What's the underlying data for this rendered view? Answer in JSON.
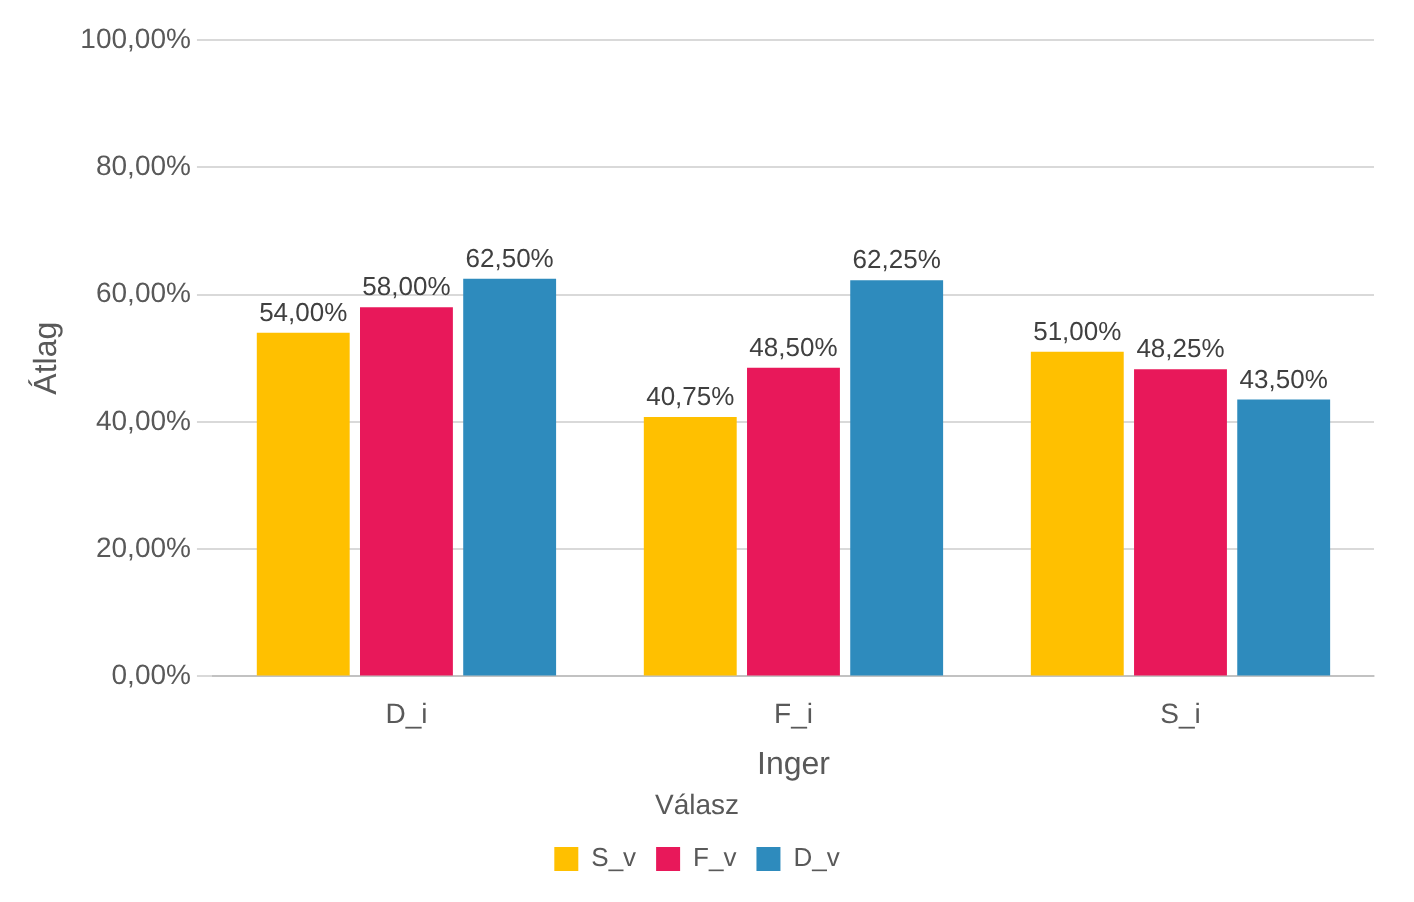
{
  "chart_data": {
    "type": "bar",
    "xlabel": "Inger",
    "ylabel": "Átlag",
    "legend_title": "Válasz",
    "categories": [
      "D_i",
      "F_i",
      "S_i"
    ],
    "series": [
      {
        "name": "S_v",
        "color": "#ffc000",
        "values": [
          54,
          40.75,
          51
        ],
        "value_labels": [
          "54,00%",
          "40,75%",
          "51,00%"
        ]
      },
      {
        "name": "F_v",
        "color": "#e8185a",
        "values": [
          58,
          48.5,
          48.25
        ],
        "value_labels": [
          "58,00%",
          "48,50%",
          "48,25%"
        ]
      },
      {
        "name": "D_v",
        "color": "#2e8bbd",
        "values": [
          62.5,
          62.25,
          43.5
        ],
        "value_labels": [
          "62,50%",
          "62,25%",
          "43,50%"
        ]
      }
    ],
    "ylim": [
      0,
      100
    ],
    "yticks": [
      {
        "value": 0,
        "label": "0,00%"
      },
      {
        "value": 20,
        "label": "20,00%"
      },
      {
        "value": 40,
        "label": "40,00%"
      },
      {
        "value": 60,
        "label": "60,00%"
      },
      {
        "value": 80,
        "label": "80,00%"
      },
      {
        "value": 100,
        "label": "100,00%"
      }
    ],
    "grid": "y",
    "legend": "bottom"
  }
}
